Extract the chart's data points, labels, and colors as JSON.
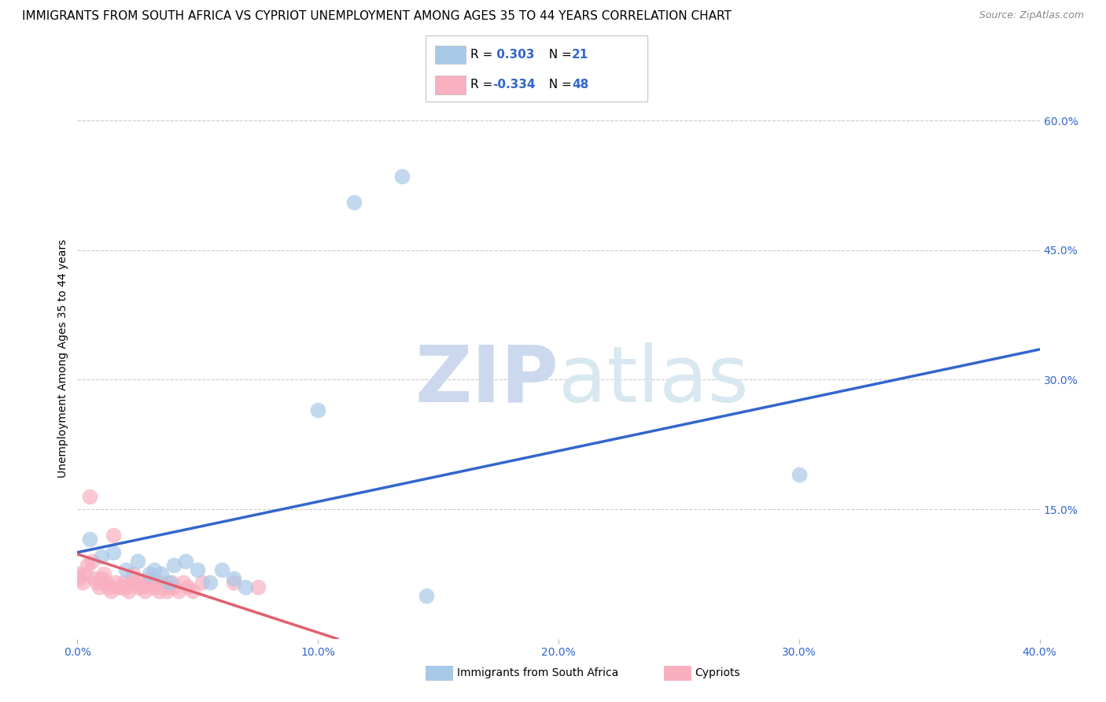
{
  "title": "IMMIGRANTS FROM SOUTH AFRICA VS CYPRIOT UNEMPLOYMENT AMONG AGES 35 TO 44 YEARS CORRELATION CHART",
  "source": "Source: ZipAtlas.com",
  "ylabel": "Unemployment Among Ages 35 to 44 years",
  "xlim": [
    0.0,
    0.4
  ],
  "ylim": [
    0.0,
    0.65
  ],
  "xticks": [
    0.0,
    0.1,
    0.2,
    0.3,
    0.4
  ],
  "xtick_labels": [
    "0.0%",
    "10.0%",
    "20.0%",
    "30.0%",
    "40.0%"
  ],
  "yticks_right": [
    0.15,
    0.3,
    0.45,
    0.6
  ],
  "ytick_labels_right": [
    "15.0%",
    "30.0%",
    "45.0%",
    "60.0%"
  ],
  "grid_color": "#cccccc",
  "blue_color": "#a8c8e8",
  "pink_color": "#f8b0c0",
  "blue_line_color": "#3366cc",
  "pink_line_color": "#e06070",
  "blue_R": 0.303,
  "blue_N": 21,
  "pink_R": -0.334,
  "pink_N": 48,
  "blue_scatter_x": [
    0.005,
    0.01,
    0.015,
    0.02,
    0.025,
    0.03,
    0.032,
    0.035,
    0.038,
    0.04,
    0.045,
    0.05,
    0.055,
    0.06,
    0.065,
    0.07,
    0.1,
    0.115,
    0.135,
    0.145,
    0.3
  ],
  "blue_scatter_y": [
    0.115,
    0.095,
    0.1,
    0.08,
    0.09,
    0.075,
    0.08,
    0.075,
    0.065,
    0.085,
    0.09,
    0.08,
    0.065,
    0.08,
    0.07,
    0.06,
    0.265,
    0.505,
    0.535,
    0.05,
    0.19
  ],
  "pink_scatter_x": [
    0.0005,
    0.001,
    0.002,
    0.003,
    0.004,
    0.005,
    0.006,
    0.007,
    0.008,
    0.009,
    0.01,
    0.011,
    0.012,
    0.013,
    0.014,
    0.015,
    0.016,
    0.017,
    0.018,
    0.019,
    0.02,
    0.021,
    0.022,
    0.023,
    0.024,
    0.025,
    0.026,
    0.027,
    0.028,
    0.029,
    0.03,
    0.031,
    0.032,
    0.033,
    0.034,
    0.035,
    0.036,
    0.037,
    0.038,
    0.039,
    0.04,
    0.042,
    0.044,
    0.046,
    0.048,
    0.052,
    0.065,
    0.075
  ],
  "pink_scatter_y": [
    0.075,
    0.07,
    0.065,
    0.075,
    0.085,
    0.165,
    0.09,
    0.07,
    0.065,
    0.06,
    0.07,
    0.075,
    0.065,
    0.06,
    0.055,
    0.12,
    0.065,
    0.06,
    0.06,
    0.065,
    0.06,
    0.055,
    0.065,
    0.075,
    0.065,
    0.06,
    0.065,
    0.06,
    0.055,
    0.065,
    0.07,
    0.06,
    0.065,
    0.06,
    0.055,
    0.065,
    0.06,
    0.055,
    0.06,
    0.065,
    0.06,
    0.055,
    0.065,
    0.06,
    0.055,
    0.065,
    0.065,
    0.06
  ],
  "blue_trendline_x": [
    0.0,
    0.4
  ],
  "blue_trendline_y": [
    0.1,
    0.335
  ],
  "pink_trendline_x": [
    0.0,
    0.108
  ],
  "pink_trendline_y": [
    0.098,
    0.0
  ],
  "watermark_text": "ZIPatlas",
  "watermark_color": "#ccd8ee",
  "background_color": "#ffffff",
  "title_fontsize": 11,
  "legend_label_color": "#3366cc",
  "tick_color": "#3366cc"
}
